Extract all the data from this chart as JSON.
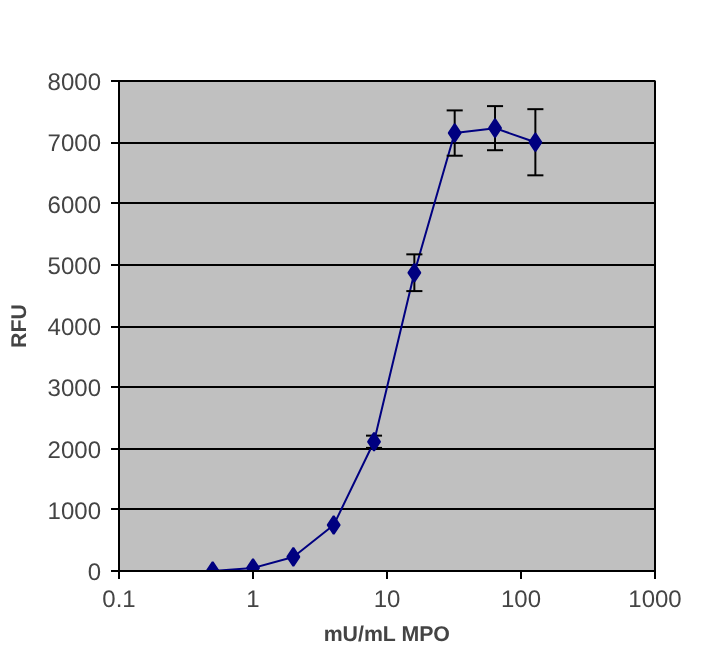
{
  "chart_data": {
    "type": "line",
    "xlabel": "mU/mL MPO",
    "ylabel": "RFU",
    "log": "x",
    "x": [
      0.5,
      1,
      2,
      4,
      8,
      16,
      32,
      64,
      128
    ],
    "series": [
      {
        "color": "#000080",
        "values": [
          0,
          50,
          230,
          750,
          2110,
          4870,
          7150,
          7230,
          7000
        ],
        "errors": [
          null,
          null,
          null,
          null,
          100,
          300,
          370,
          360,
          540
        ]
      }
    ],
    "xlim": [
      0.1,
      1000
    ],
    "xticks": [
      0.1,
      1,
      10,
      100,
      1000
    ],
    "ylim": [
      0,
      8000
    ],
    "yticks": [
      0,
      1000,
      2000,
      3000,
      4000,
      5000,
      6000,
      7000,
      8000
    ],
    "grid": "y",
    "marker": "diamond",
    "line_style": "solid"
  }
}
